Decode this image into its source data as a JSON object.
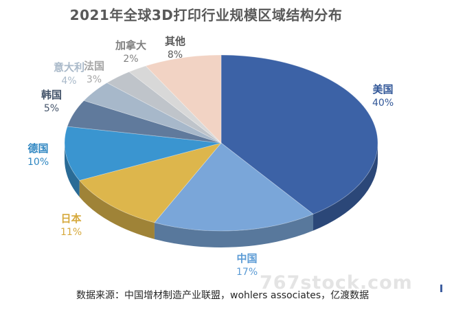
{
  "chart_data": {
    "type": "pie",
    "title": "2021年全球3D打印行业规模区域结构分布",
    "slices": [
      {
        "name": "美国",
        "value": 40,
        "label": "40%",
        "color": "#3c62a6"
      },
      {
        "name": "中国",
        "value": 17,
        "label": "17%",
        "color": "#7aa6d9"
      },
      {
        "name": "日本",
        "value": 11,
        "label": "11%",
        "color": "#ddb64c"
      },
      {
        "name": "德国",
        "value": 10,
        "label": "10%",
        "color": "#3a95d0"
      },
      {
        "name": "韩国",
        "value": 5,
        "label": "5%",
        "color": "#607a9c"
      },
      {
        "name": "意大利",
        "value": 4,
        "label": "4%",
        "color": "#a7b8ca"
      },
      {
        "name": "法国",
        "value": 3,
        "label": "3%",
        "color": "#bfc4ca"
      },
      {
        "name": "加拿大",
        "value": 2,
        "label": "2%",
        "color": "#d8d8d8"
      },
      {
        "name": "其他",
        "value": 8,
        "label": "8%",
        "color": "#f2d3c4"
      }
    ],
    "label_colors": {
      "美国": "#2f5597",
      "中国": "#5b9bd5",
      "日本": "#d6a93c",
      "德国": "#2e86c1",
      "韩国": "#44546a",
      "意大利": "#a9b9c9",
      "法国": "#a5a5a5",
      "加拿大": "#7f7f7f",
      "其他": "#595959"
    },
    "source": "数据来源：中国增材制造产业联盟，wohlers associates，亿渡数据",
    "watermark": "767stock.com"
  }
}
